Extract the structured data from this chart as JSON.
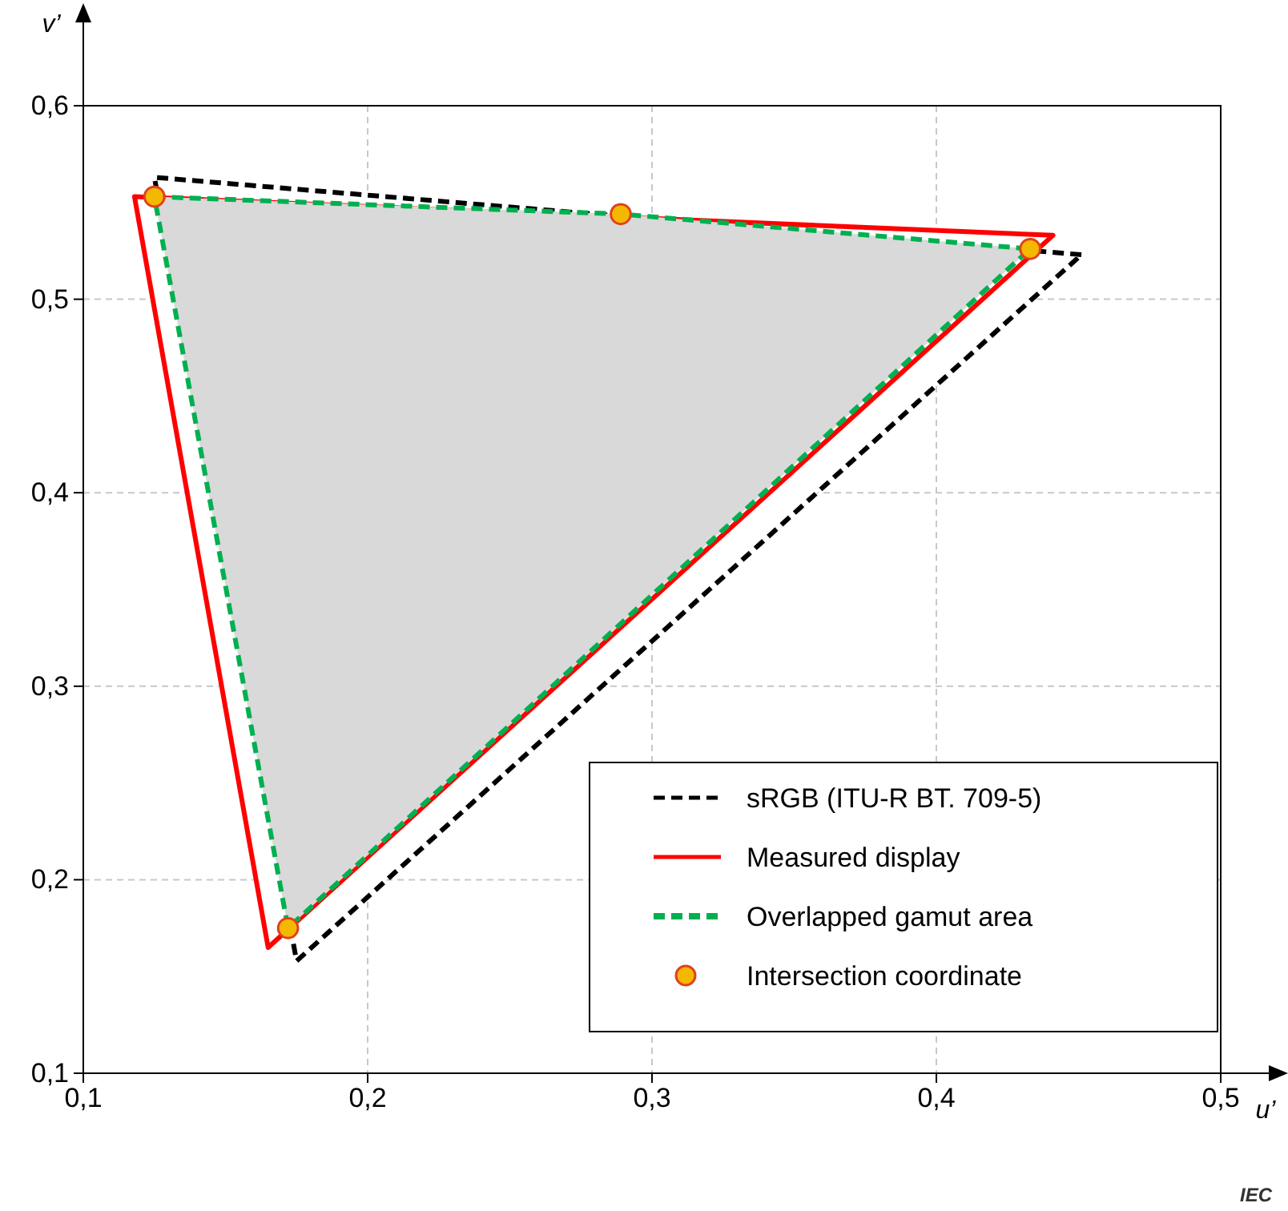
{
  "chart_data": {
    "type": "area",
    "xlabel": "u’",
    "ylabel": "v’",
    "xlim": [
      0.1,
      0.5
    ],
    "ylim": [
      0.1,
      0.6
    ],
    "xticks": [
      {
        "value": 0.1,
        "label": "0,1"
      },
      {
        "value": 0.2,
        "label": "0,2"
      },
      {
        "value": 0.3,
        "label": "0,3"
      },
      {
        "value": 0.4,
        "label": "0,4"
      },
      {
        "value": 0.5,
        "label": "0,5"
      }
    ],
    "yticks": [
      {
        "value": 0.1,
        "label": "0,1"
      },
      {
        "value": 0.2,
        "label": "0,2"
      },
      {
        "value": 0.3,
        "label": "0,3"
      },
      {
        "value": 0.4,
        "label": "0,4"
      },
      {
        "value": 0.5,
        "label": "0,5"
      },
      {
        "value": 0.6,
        "label": "0,6"
      }
    ],
    "grid": true,
    "legend": "bottom right",
    "series": [
      {
        "name": "sRGB (ITU-R BT. 709-5)",
        "color": "#000000",
        "line_style": "dashed",
        "x": [
          0.451,
          0.125,
          0.175,
          0.451
        ],
        "values": [
          0.523,
          0.563,
          0.158,
          0.523
        ]
      },
      {
        "name": "Measured display",
        "color": "#ff0000",
        "line_style": "solid",
        "x": [
          0.441,
          0.118,
          0.165,
          0.441
        ],
        "values": [
          0.533,
          0.553,
          0.165,
          0.533
        ]
      },
      {
        "name": "Overlapped gamut area",
        "color": "#00b050",
        "line_style": "dashed",
        "x": [
          0.125,
          0.289,
          0.433,
          0.172,
          0.125
        ],
        "values": [
          0.553,
          0.544,
          0.526,
          0.175,
          0.553
        ]
      },
      {
        "type": "scatter",
        "name": "Intersection coordinate",
        "color": "#f5b800",
        "marker": "circle",
        "x": [
          0.125,
          0.289,
          0.433,
          0.172
        ],
        "values": [
          0.553,
          0.544,
          0.526,
          0.175
        ]
      }
    ],
    "annotations": [
      "IEC"
    ]
  }
}
